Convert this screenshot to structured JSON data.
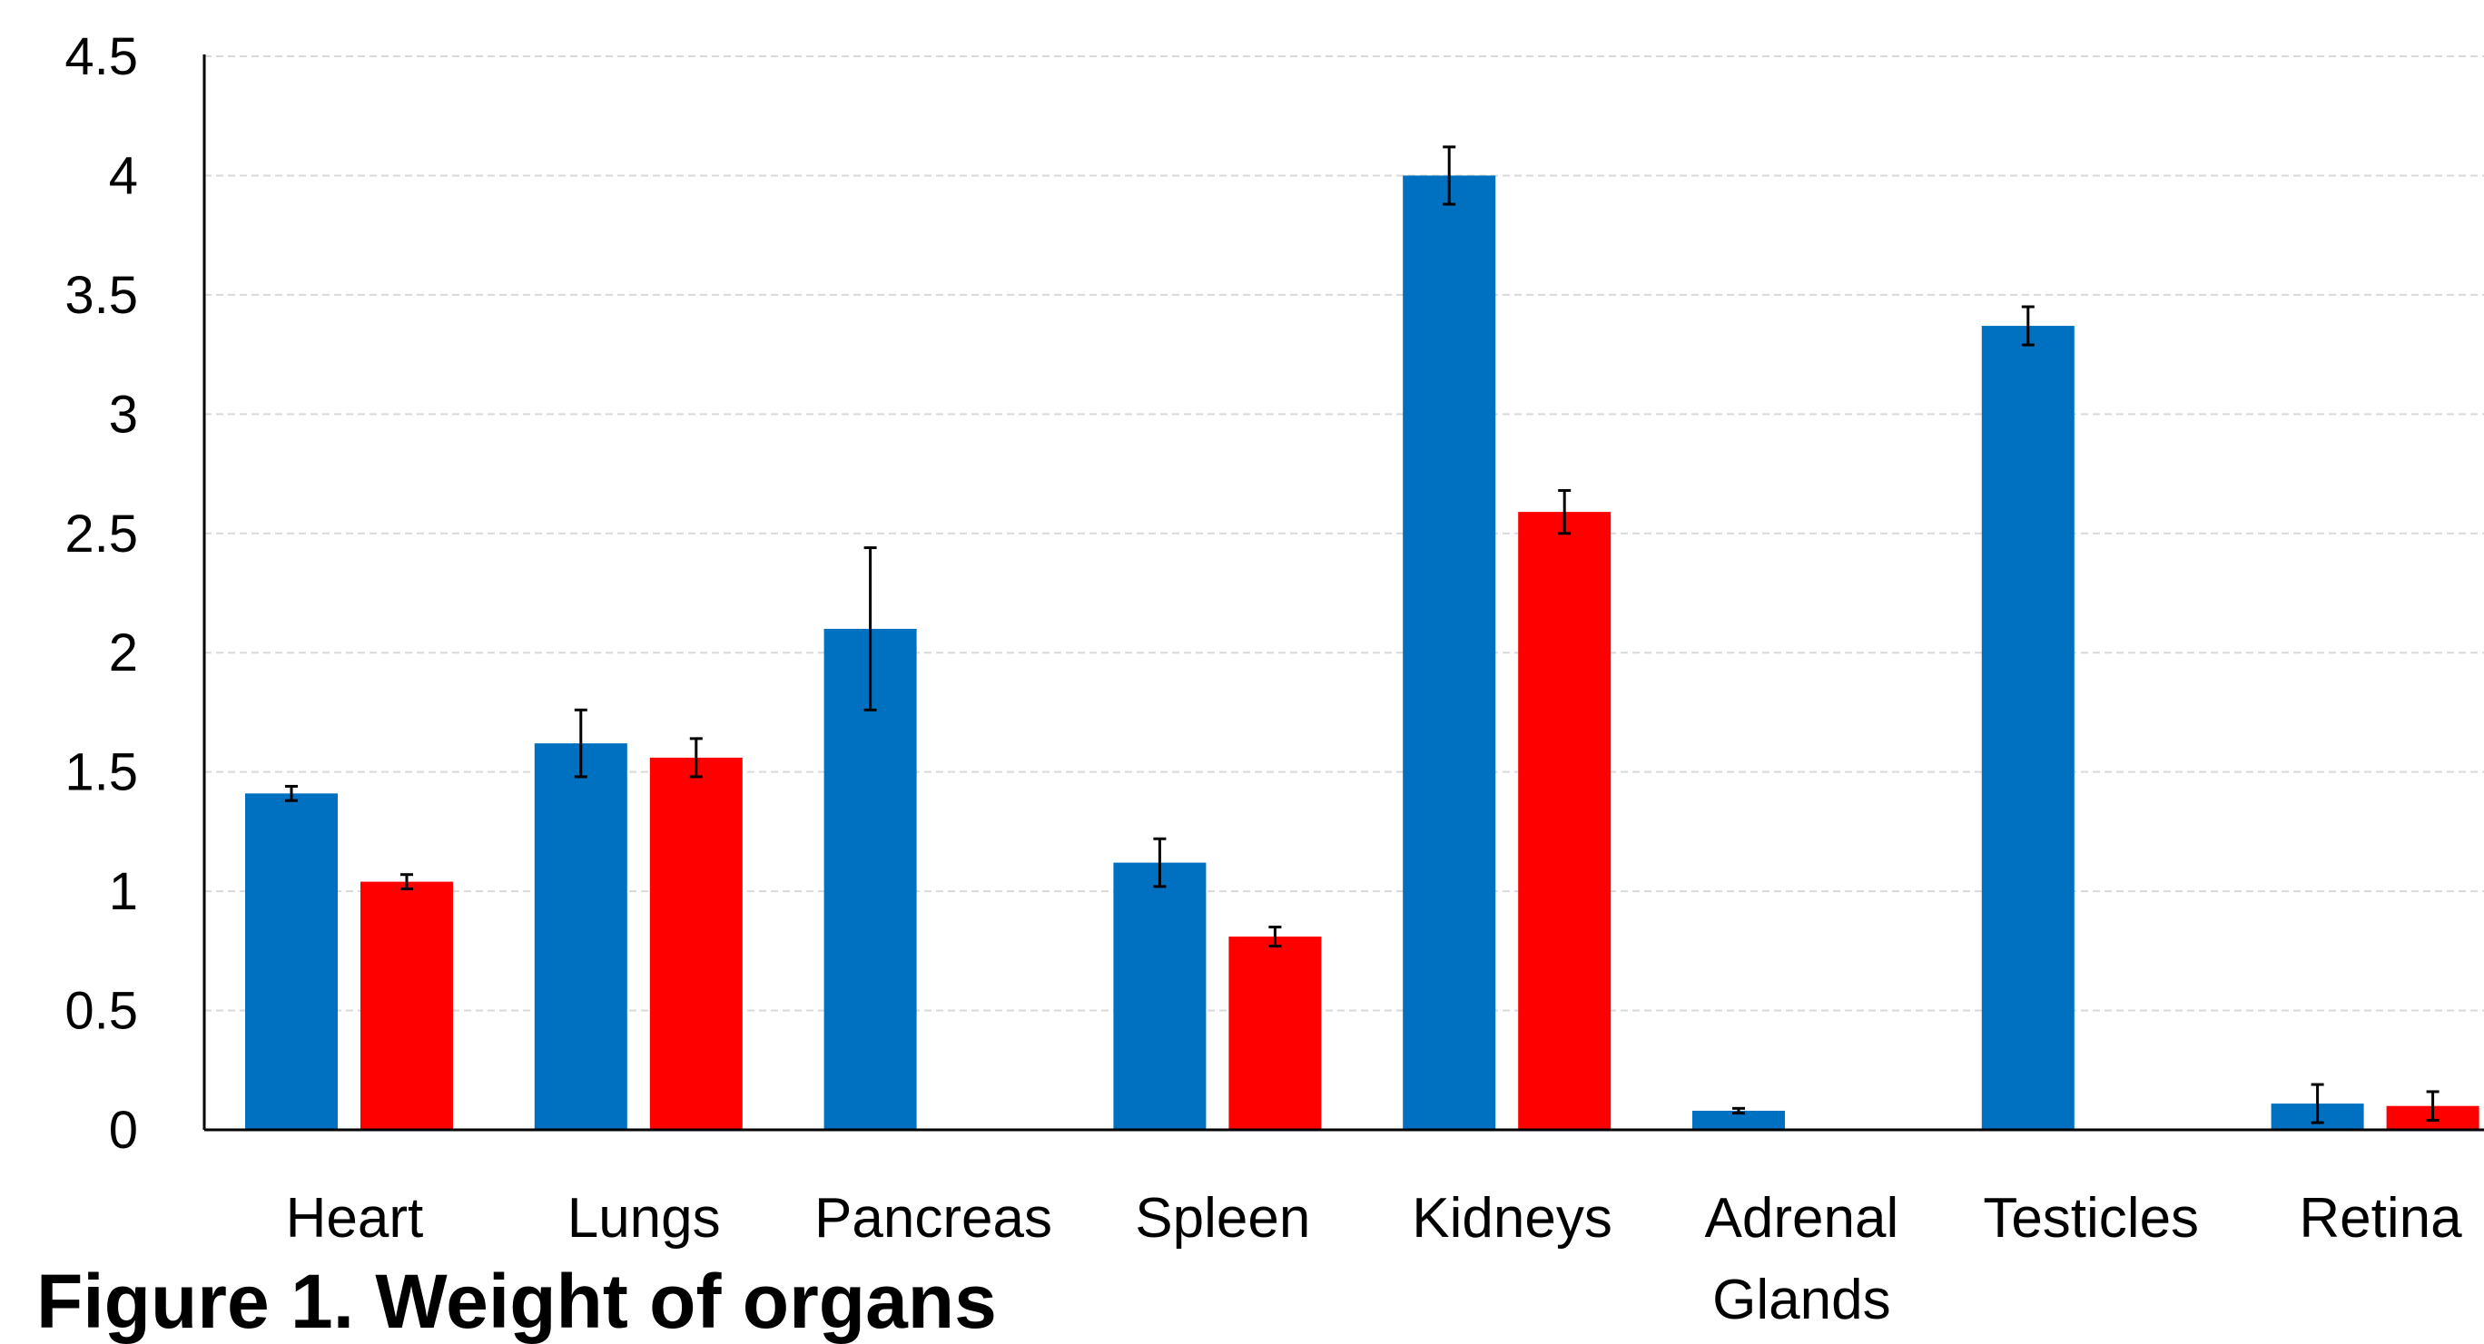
{
  "chart_data": {
    "type": "bar",
    "title": "",
    "xlabel": "",
    "ylabel": "",
    "categories": [
      "Heart",
      "Lungs",
      "Pancreas",
      "Spleen",
      "Kidneys",
      "Adrenal Glands",
      "Testicles",
      "Retina"
    ],
    "category_lines": [
      [
        "Heart"
      ],
      [
        "Lungs"
      ],
      [
        "Pancreas"
      ],
      [
        "Spleen"
      ],
      [
        "Kidneys"
      ],
      [
        "Adrenal",
        "Glands"
      ],
      [
        "Testicles"
      ],
      [
        "Retina"
      ]
    ],
    "series": [
      {
        "color": "#0070C0",
        "values": [
          1.41,
          1.62,
          2.1,
          1.12,
          4.0,
          0.08,
          3.37,
          0.11
        ],
        "errors": [
          0.03,
          0.14,
          0.34,
          0.1,
          0.12,
          0.01,
          0.08,
          0.08
        ]
      },
      {
        "color": "#FF0000",
        "values": [
          1.04,
          1.56,
          0,
          0.81,
          2.59,
          0,
          0,
          0.1
        ],
        "errors": [
          0.03,
          0.08,
          0,
          0.04,
          0.09,
          0,
          0,
          0.06
        ]
      }
    ],
    "ylim": [
      0,
      4.5
    ],
    "yticks": [
      "0",
      "0.5",
      "1",
      "1.5",
      "2",
      "2.5",
      "3",
      "3.5",
      "4",
      "4.5"
    ],
    "ytick_values": [
      0,
      0.5,
      1,
      1.5,
      2,
      2.5,
      3,
      3.5,
      4,
      4.5
    ],
    "grid": true,
    "legend": "none"
  },
  "caption": "Figure 1. Weight of organs"
}
